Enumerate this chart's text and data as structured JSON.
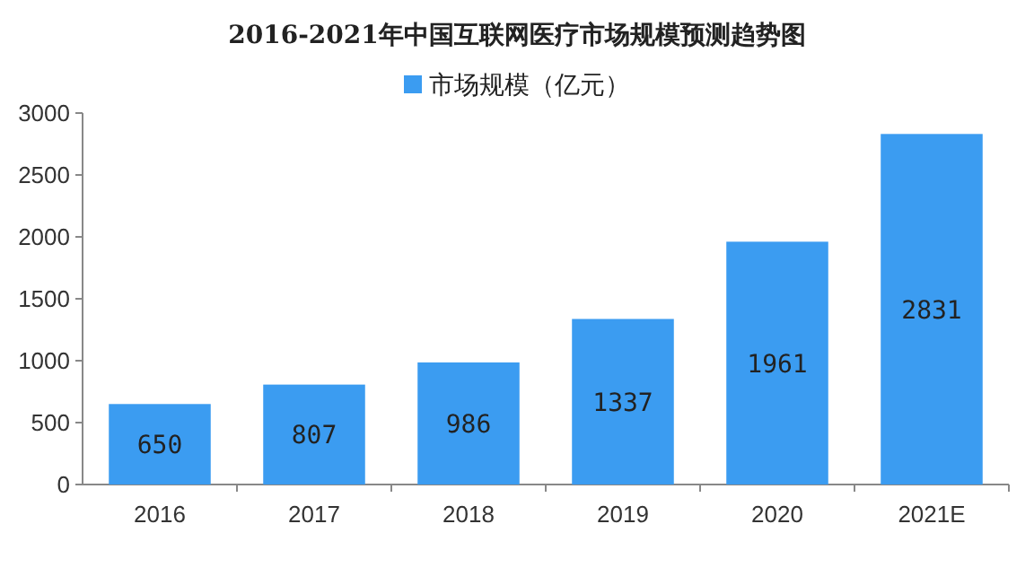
{
  "chart_data": {
    "type": "bar",
    "title": "2016-2021年中国互联网医疗市场规模预测趋势图",
    "categories": [
      "2016",
      "2017",
      "2018",
      "2019",
      "2020",
      "2021E"
    ],
    "series": [
      {
        "name": "市场规模（亿元）",
        "color": "#3b9cf1",
        "values": [
          650,
          807,
          986,
          1337,
          1961,
          2831
        ]
      }
    ],
    "ylim": [
      0,
      3000
    ],
    "yticks": [
      0,
      500,
      1000,
      1500,
      2000,
      2500,
      3000
    ],
    "data_labels": true,
    "legend": "top",
    "grid": false
  }
}
